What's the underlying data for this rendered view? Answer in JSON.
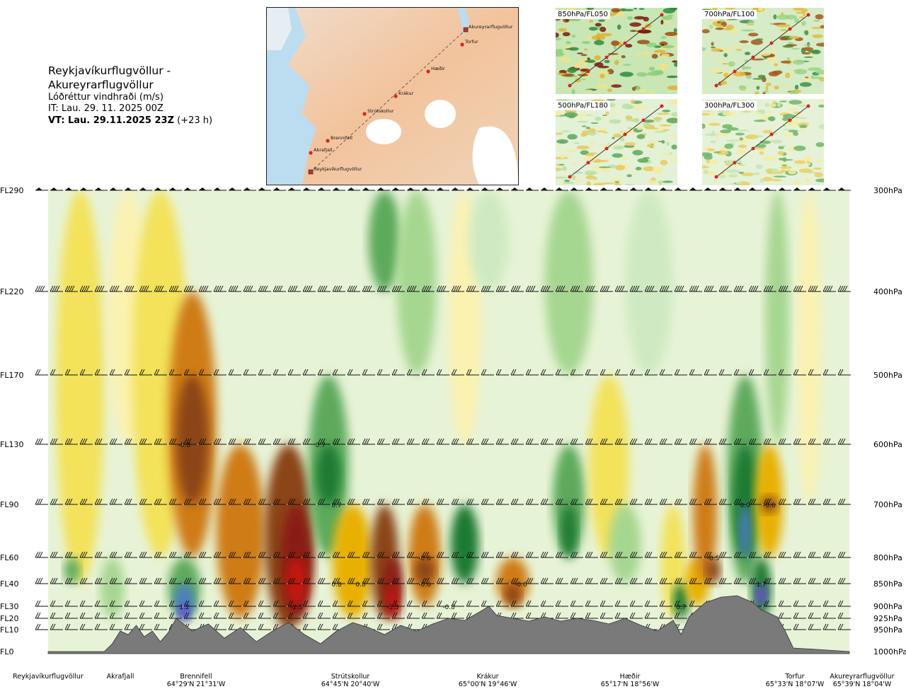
{
  "header": {
    "route": "Reykjavíkurflugvöllur - Akureyrarflugvöllur",
    "variable": "Lóðréttur vindhraði (m/s)",
    "issue_time": "IT: Lau. 29. 11. 2025 00Z",
    "valid_time_bold": "VT: Lau. 29.11.2025 23Z",
    "valid_time_offset": "(+23 h)"
  },
  "route_map": {
    "waypoints": [
      "Reykjavíkurflugvöllur",
      "Akrafjall",
      "Brennifell",
      "Strútskollur",
      "Krákur",
      "Hæðir",
      "Torfur",
      "Akureyrarflugvöllur"
    ]
  },
  "mini_maps": [
    {
      "label": "850hPa/FL050"
    },
    {
      "label": "700hPa/FL100"
    },
    {
      "label": "500hPa/FL180"
    },
    {
      "label": "300hPa/FL300"
    }
  ],
  "chart_data": {
    "type": "heatmap",
    "title": "Reykjavíkurflugvöllur - Akureyrarflugvöllur",
    "variable": "Lóðréttur vindhraði (m/s)",
    "y_levels_left": [
      "FL290",
      "FL220",
      "FL170",
      "FL130",
      "FL90",
      "FL60",
      "FL40",
      "FL30",
      "FL20",
      "FL10",
      "FL0"
    ],
    "y_levels_right": [
      "300hPa",
      "400hPa",
      "500hPa",
      "600hPa",
      "700hPa",
      "800hPa",
      "850hPa",
      "900hPa",
      "925hPa",
      "950hPa",
      "1000hPa"
    ],
    "x_locations": [
      {
        "name": "Reykjavíkurflugvöllur",
        "coord": ""
      },
      {
        "name": "Akrafjall",
        "coord": ""
      },
      {
        "name": "Brennifell",
        "coord": "64°29'N 21°31'W"
      },
      {
        "name": "Strútskollur",
        "coord": "64°45'N 20°40'W"
      },
      {
        "name": "Krákur",
        "coord": "65°00'N 19°46'W"
      },
      {
        "name": "Hæðir",
        "coord": "65°17'N 18°56'W"
      },
      {
        "name": "Torfur",
        "coord": "65°33'N 18°07'W"
      },
      {
        "name": "Akureyrarflugvöllur",
        "coord": "65°39'N 18°04'W"
      }
    ],
    "value_labels": [
      {
        "text": "-0.8",
        "dist": 0.17,
        "level": "FL130"
      },
      {
        "text": "0.7",
        "dist": 0.34,
        "level": "FL130"
      },
      {
        "text": "0.7",
        "dist": 0.36,
        "level": "FL90"
      },
      {
        "text": "1.2",
        "dist": 0.17,
        "level": "FL30"
      },
      {
        "text": "-2.5",
        "dist": 0.31,
        "level": "FL30"
      },
      {
        "text": "0.8",
        "dist": 0.36,
        "level": "FL40"
      },
      {
        "text": "0.8",
        "dist": 0.39,
        "level": "FL40"
      },
      {
        "text": "-3.3",
        "dist": 0.43,
        "level": "FL30"
      },
      {
        "text": "-0.6",
        "dist": 0.47,
        "level": "FL60"
      },
      {
        "text": "-0.6",
        "dist": 0.47,
        "level": "FL40"
      },
      {
        "text": "-0.8",
        "dist": 0.5,
        "level": "FL30"
      },
      {
        "text": "-0.6",
        "dist": 0.59,
        "level": "FL40"
      },
      {
        "text": "0.7",
        "dist": 0.79,
        "level": "FL30"
      },
      {
        "text": "-0.5",
        "dist": 0.83,
        "level": "FL60"
      },
      {
        "text": "0.9",
        "dist": 0.87,
        "level": "FL90"
      },
      {
        "text": "-0.6",
        "dist": 0.9,
        "level": "FL90"
      },
      {
        "text": "1.7",
        "dist": 0.89,
        "level": "FL40"
      }
    ]
  }
}
